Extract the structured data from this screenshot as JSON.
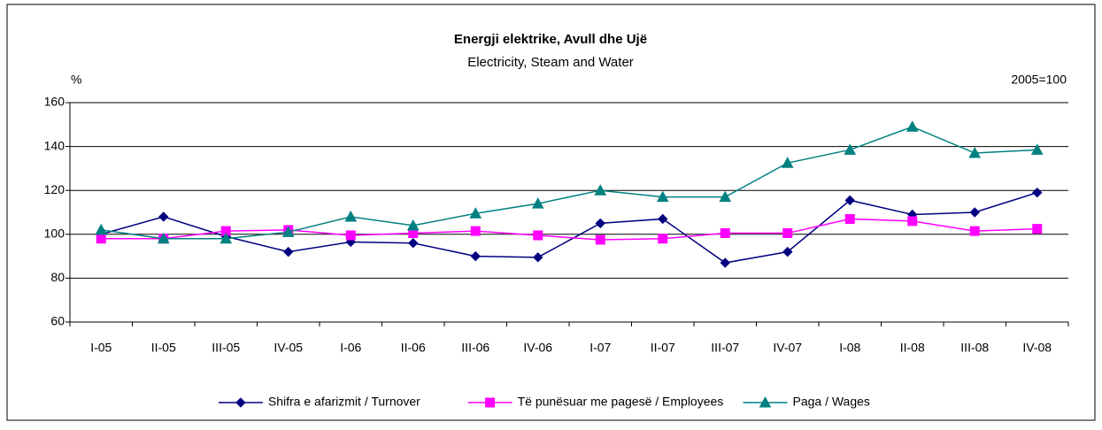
{
  "chart_data": {
    "type": "line",
    "title": "Energji elektrike, Avull dhe Ujë",
    "subtitle": "Electricity, Steam and Water",
    "y_label": "%",
    "annotation": "2005=100",
    "categories": [
      "I-05",
      "II-05",
      "III-05",
      "IV-05",
      "I-06",
      "II-06",
      "III-06",
      "IV-06",
      "I-07",
      "II-07",
      "III-07",
      "IV-07",
      "I-08",
      "II-08",
      "III-08",
      "IV-08"
    ],
    "series": [
      {
        "name": "Shifra e afarizmit / Turnover",
        "color": "#000080",
        "marker": "diamond",
        "values": [
          100,
          108,
          99,
          92,
          96.5,
          96,
          90,
          89.5,
          105,
          107,
          87,
          92,
          115.5,
          109,
          110,
          119
        ]
      },
      {
        "name": "Të punësuar me pagesë / Employees",
        "color": "#ff00ff",
        "marker": "square",
        "values": [
          98,
          98,
          101.5,
          102,
          99.5,
          100.5,
          101.5,
          99.5,
          97.5,
          98,
          100.5,
          100.5,
          107,
          106,
          101.5,
          102.5
        ]
      },
      {
        "name": "Paga / Wages",
        "color": "#008080",
        "marker": "triangle",
        "values": [
          102,
          98,
          98,
          101,
          108,
          104,
          109.5,
          114,
          120,
          117,
          117,
          132.5,
          138.5,
          149,
          137,
          138.5
        ]
      }
    ],
    "ylim": [
      60,
      160
    ],
    "yticks": [
      60,
      80,
      100,
      120,
      140,
      160
    ],
    "grid": true,
    "legend": "bottom"
  }
}
